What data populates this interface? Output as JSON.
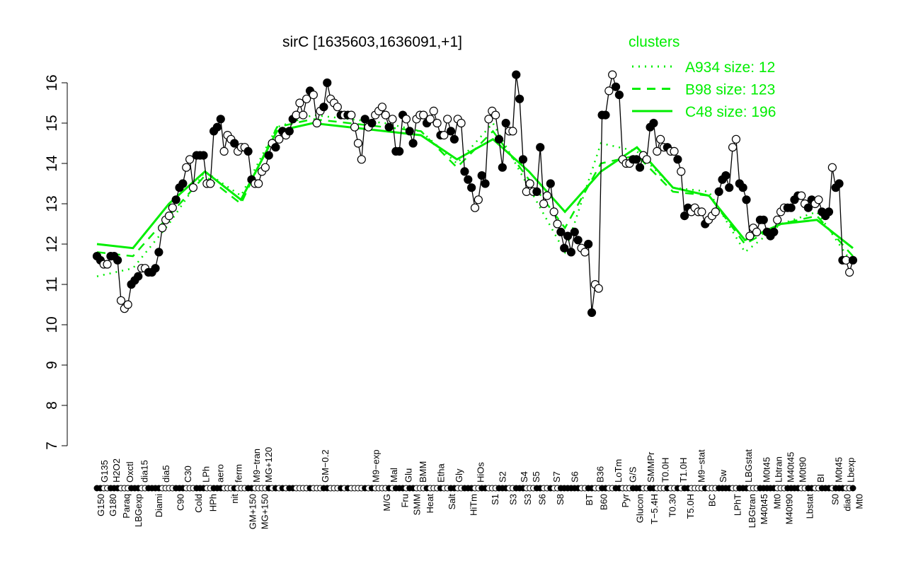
{
  "chart_data": {
    "type": "scatter",
    "title": "sirC [1635603,1636091,+1]",
    "xlabel": "",
    "ylabel": "",
    "ylim": [
      7,
      16
    ],
    "yticks": [
      7,
      8,
      9,
      10,
      11,
      12,
      13,
      14,
      15,
      16
    ],
    "legend": {
      "title": "clusters",
      "position": "top-right",
      "color": "#00ee00",
      "entries": [
        {
          "label": "A934 size: 12",
          "style": "dotted"
        },
        {
          "label": "B98 size: 123",
          "style": "dashed"
        },
        {
          "label": "C48 size: 196",
          "style": "solid"
        }
      ]
    },
    "points": [
      [
        11.7,
        1
      ],
      [
        11.6,
        1
      ],
      [
        11.5,
        0
      ],
      [
        11.5,
        0
      ],
      [
        11.7,
        1
      ],
      [
        11.7,
        1
      ],
      [
        11.6,
        1
      ],
      [
        10.6,
        0
      ],
      [
        10.4,
        0
      ],
      [
        10.5,
        0
      ],
      [
        11.0,
        1
      ],
      [
        11.1,
        1
      ],
      [
        11.2,
        1
      ],
      [
        11.4,
        0
      ],
      [
        11.4,
        0
      ],
      [
        11.3,
        1
      ],
      [
        11.3,
        1
      ],
      [
        11.4,
        1
      ],
      [
        11.8,
        1
      ],
      [
        12.4,
        0
      ],
      [
        12.6,
        0
      ],
      [
        12.7,
        0
      ],
      [
        12.9,
        0
      ],
      [
        13.1,
        1
      ],
      [
        13.4,
        1
      ],
      [
        13.5,
        1
      ],
      [
        13.9,
        0
      ],
      [
        14.1,
        0
      ],
      [
        13.4,
        0
      ],
      [
        14.2,
        1
      ],
      [
        14.2,
        1
      ],
      [
        14.2,
        1
      ],
      [
        13.5,
        0
      ],
      [
        13.5,
        0
      ],
      [
        14.8,
        1
      ],
      [
        14.9,
        1
      ],
      [
        15.1,
        1
      ],
      [
        14.3,
        0
      ],
      [
        14.7,
        0
      ],
      [
        14.6,
        0
      ],
      [
        14.5,
        1
      ],
      [
        14.3,
        0
      ],
      [
        14.4,
        0
      ],
      [
        14.4,
        0
      ],
      [
        14.3,
        1
      ],
      [
        13.6,
        1
      ],
      [
        13.5,
        0
      ],
      [
        13.5,
        0
      ],
      [
        13.8,
        0
      ],
      [
        13.9,
        0
      ],
      [
        14.2,
        1
      ],
      [
        14.5,
        0
      ],
      [
        14.4,
        1
      ],
      [
        14.6,
        0
      ],
      [
        14.8,
        1
      ],
      [
        14.7,
        0
      ],
      [
        14.8,
        1
      ],
      [
        15.1,
        1
      ],
      [
        15.2,
        0
      ],
      [
        15.5,
        0
      ],
      [
        15.2,
        0
      ],
      [
        15.6,
        0
      ],
      [
        15.8,
        1
      ],
      [
        15.7,
        0
      ],
      [
        15.0,
        0
      ],
      [
        15.3,
        0
      ],
      [
        15.4,
        1
      ],
      [
        16.0,
        1
      ],
      [
        15.6,
        0
      ],
      [
        15.5,
        0
      ],
      [
        15.4,
        0
      ],
      [
        15.2,
        1
      ],
      [
        15.2,
        0
      ],
      [
        15.2,
        1
      ],
      [
        15.2,
        0
      ],
      [
        14.9,
        0
      ],
      [
        14.5,
        0
      ],
      [
        14.1,
        0
      ],
      [
        15.1,
        1
      ],
      [
        14.9,
        0
      ],
      [
        15.0,
        1
      ],
      [
        15.2,
        0
      ],
      [
        15.3,
        0
      ],
      [
        15.4,
        0
      ],
      [
        15.2,
        0
      ],
      [
        14.9,
        1
      ],
      [
        15.1,
        0
      ],
      [
        14.3,
        1
      ],
      [
        14.3,
        1
      ],
      [
        15.2,
        1
      ],
      [
        15.1,
        0
      ],
      [
        14.8,
        1
      ],
      [
        14.5,
        1
      ],
      [
        15.1,
        0
      ],
      [
        15.2,
        0
      ],
      [
        15.2,
        0
      ],
      [
        15.0,
        1
      ],
      [
        15.1,
        0
      ],
      [
        15.3,
        0
      ],
      [
        15.0,
        0
      ],
      [
        14.7,
        1
      ],
      [
        14.7,
        0
      ],
      [
        15.1,
        0
      ],
      [
        14.8,
        1
      ],
      [
        14.6,
        1
      ],
      [
        15.1,
        0
      ],
      [
        15.0,
        0
      ],
      [
        13.8,
        1
      ],
      [
        13.6,
        1
      ],
      [
        13.4,
        1
      ],
      [
        12.9,
        0
      ],
      [
        13.1,
        0
      ],
      [
        13.7,
        1
      ],
      [
        13.5,
        1
      ],
      [
        15.1,
        0
      ],
      [
        15.3,
        0
      ],
      [
        15.2,
        0
      ],
      [
        14.6,
        1
      ],
      [
        13.9,
        1
      ],
      [
        15.0,
        1
      ],
      [
        14.8,
        0
      ],
      [
        14.8,
        0
      ],
      [
        16.2,
        1
      ],
      [
        15.6,
        1
      ],
      [
        14.1,
        1
      ],
      [
        13.3,
        0
      ],
      [
        13.5,
        0
      ],
      [
        13.3,
        0
      ],
      [
        13.3,
        1
      ],
      [
        14.4,
        1
      ],
      [
        13.0,
        0
      ],
      [
        13.2,
        0
      ],
      [
        13.5,
        1
      ],
      [
        12.8,
        0
      ],
      [
        12.5,
        0
      ],
      [
        12.3,
        1
      ],
      [
        11.9,
        1
      ],
      [
        12.2,
        1
      ],
      [
        11.8,
        1
      ],
      [
        12.3,
        1
      ],
      [
        12.1,
        1
      ],
      [
        11.9,
        0
      ],
      [
        11.8,
        0
      ],
      [
        12.0,
        1
      ],
      [
        10.3,
        1
      ],
      [
        11.0,
        0
      ],
      [
        10.9,
        0
      ],
      [
        15.2,
        1
      ],
      [
        15.2,
        1
      ],
      [
        15.8,
        0
      ],
      [
        16.2,
        0
      ],
      [
        15.9,
        1
      ],
      [
        15.7,
        1
      ],
      [
        14.1,
        0
      ],
      [
        14.0,
        0
      ],
      [
        14.0,
        0
      ],
      [
        14.1,
        1
      ],
      [
        14.1,
        1
      ],
      [
        13.9,
        1
      ],
      [
        14.2,
        0
      ],
      [
        14.1,
        0
      ],
      [
        14.9,
        1
      ],
      [
        15.0,
        1
      ],
      [
        14.3,
        0
      ],
      [
        14.6,
        0
      ],
      [
        14.4,
        0
      ],
      [
        14.4,
        1
      ],
      [
        14.3,
        0
      ],
      [
        14.3,
        0
      ],
      [
        14.1,
        1
      ],
      [
        13.8,
        0
      ],
      [
        12.7,
        1
      ],
      [
        12.9,
        1
      ],
      [
        12.8,
        0
      ],
      [
        12.9,
        0
      ],
      [
        12.8,
        0
      ],
      [
        12.8,
        0
      ],
      [
        12.5,
        1
      ],
      [
        12.6,
        0
      ],
      [
        12.7,
        0
      ],
      [
        12.8,
        0
      ],
      [
        13.3,
        1
      ],
      [
        13.6,
        1
      ],
      [
        13.7,
        1
      ],
      [
        13.4,
        1
      ],
      [
        14.4,
        0
      ],
      [
        14.6,
        0
      ],
      [
        13.5,
        1
      ],
      [
        13.4,
        1
      ],
      [
        13.1,
        1
      ],
      [
        12.2,
        0
      ],
      [
        12.4,
        0
      ],
      [
        12.3,
        0
      ],
      [
        12.6,
        1
      ],
      [
        12.6,
        1
      ],
      [
        12.3,
        1
      ],
      [
        12.2,
        1
      ],
      [
        12.3,
        1
      ],
      [
        12.6,
        0
      ],
      [
        12.8,
        0
      ],
      [
        12.9,
        0
      ],
      [
        12.9,
        1
      ],
      [
        12.9,
        1
      ],
      [
        13.1,
        1
      ],
      [
        13.2,
        1
      ],
      [
        13.2,
        0
      ],
      [
        13.0,
        0
      ],
      [
        12.9,
        1
      ],
      [
        13.1,
        1
      ],
      [
        13.0,
        0
      ],
      [
        13.1,
        0
      ],
      [
        12.8,
        1
      ],
      [
        12.7,
        1
      ],
      [
        12.8,
        1
      ],
      [
        13.9,
        0
      ],
      [
        13.4,
        1
      ],
      [
        13.5,
        1
      ],
      [
        11.6,
        1
      ],
      [
        11.6,
        0
      ],
      [
        11.3,
        0
      ],
      [
        11.6,
        1
      ]
    ],
    "cluster_lines": [
      {
        "name": "A934",
        "style": "dotted",
        "values": [
          11.2,
          11.4,
          12.5,
          13.8,
          13.2,
          14.9,
          15.2,
          15.1,
          15.0,
          14.8,
          14.0,
          15.0,
          13.4,
          11.8,
          14.5,
          14.3,
          13.4,
          13.3,
          11.8,
          12.5,
          12.8,
          11.5
        ]
      },
      {
        "name": "B98",
        "style": "dashed",
        "values": [
          11.8,
          11.7,
          12.7,
          13.7,
          13.0,
          14.9,
          15.1,
          15.0,
          14.9,
          14.8,
          13.9,
          14.8,
          13.6,
          12.4,
          14.0,
          14.2,
          13.3,
          13.2,
          12.0,
          12.5,
          12.7,
          11.7
        ]
      },
      {
        "name": "C48",
        "style": "solid",
        "values": [
          12.0,
          11.9,
          13.0,
          13.8,
          13.1,
          14.8,
          15.0,
          14.9,
          14.8,
          14.7,
          14.1,
          14.6,
          13.8,
          12.8,
          13.8,
          14.4,
          13.4,
          13.2,
          12.1,
          12.5,
          12.6,
          11.9
        ]
      }
    ],
    "x_tick_labels_top": [
      [
        "G135",
        2
      ],
      [
        "H2O2",
        5
      ],
      [
        "Oxctl",
        9
      ],
      [
        "dia15",
        13
      ],
      [
        "dia5",
        19
      ],
      [
        "C30",
        25
      ],
      [
        "LPh",
        30
      ],
      [
        "aero",
        34
      ],
      [
        "ferm",
        39
      ],
      [
        "M9−tran",
        44
      ],
      [
        "MG+120",
        47
      ],
      [
        "GM−0.2",
        63
      ],
      [
        "M9−exp",
        77
      ],
      [
        "Mal",
        82
      ],
      [
        "Glu",
        86
      ],
      [
        "BMM",
        90
      ],
      [
        "Etha",
        95
      ],
      [
        "Gly",
        100
      ],
      [
        "HiOs",
        106
      ],
      [
        "S2",
        112
      ],
      [
        "S4",
        118
      ],
      [
        "S5",
        121
      ],
      [
        "S7",
        127
      ],
      [
        "S6",
        132
      ],
      [
        "B36",
        139
      ],
      [
        "LoTm",
        144
      ],
      [
        "G/S",
        148
      ],
      [
        "SMMPr",
        153
      ],
      [
        "T0.0H",
        157
      ],
      [
        "T1.0H",
        162
      ],
      [
        "M9−stat",
        167
      ],
      [
        "Sw",
        173
      ],
      [
        "LBGstat",
        180
      ],
      [
        "M0t45",
        185
      ],
      [
        "Lbtran",
        187
      ],
      [
        "M40t45",
        190
      ],
      [
        "M0t90",
        194
      ],
      [
        "BI",
        200
      ],
      [
        "M0t45",
        205
      ],
      [
        "Lbexp",
        208
      ]
    ],
    "x_tick_labels_bottom": [
      [
        "G150",
        1
      ],
      [
        "G180",
        3
      ],
      [
        "Paraq",
        8
      ],
      [
        "LBGexp",
        11
      ],
      [
        "Diami",
        17
      ],
      [
        "C90",
        23
      ],
      [
        "Cold",
        28
      ],
      [
        "HPh",
        32
      ],
      [
        "nit",
        38
      ],
      [
        "GM+150",
        43
      ],
      [
        "MG+150",
        46
      ],
      [
        "M/G",
        80
      ],
      [
        "Fru",
        85
      ],
      [
        "SMM",
        88
      ],
      [
        "Heat",
        92
      ],
      [
        "Salt",
        98
      ],
      [
        "HiTm",
        104
      ],
      [
        "S1",
        110
      ],
      [
        "S3",
        115
      ],
      [
        "S3",
        119
      ],
      [
        "S6",
        123
      ],
      [
        "S8",
        128
      ],
      [
        "BT",
        136
      ],
      [
        "B60",
        140
      ],
      [
        "Pyr",
        146
      ],
      [
        "Glucon",
        150
      ],
      [
        "T−5.4H",
        154
      ],
      [
        "T0.30",
        159
      ],
      [
        "T5.0H",
        164
      ],
      [
        "BC",
        170
      ],
      [
        "LPhT",
        177
      ],
      [
        "LBGtran",
        181
      ],
      [
        "M40t45",
        184
      ],
      [
        "Mt0",
        188
      ],
      [
        "M40t90",
        191
      ],
      [
        "Lbstat",
        197
      ],
      [
        "S0",
        204
      ],
      [
        "dia0",
        206
      ],
      [
        "Mt0",
        209
      ]
    ]
  }
}
